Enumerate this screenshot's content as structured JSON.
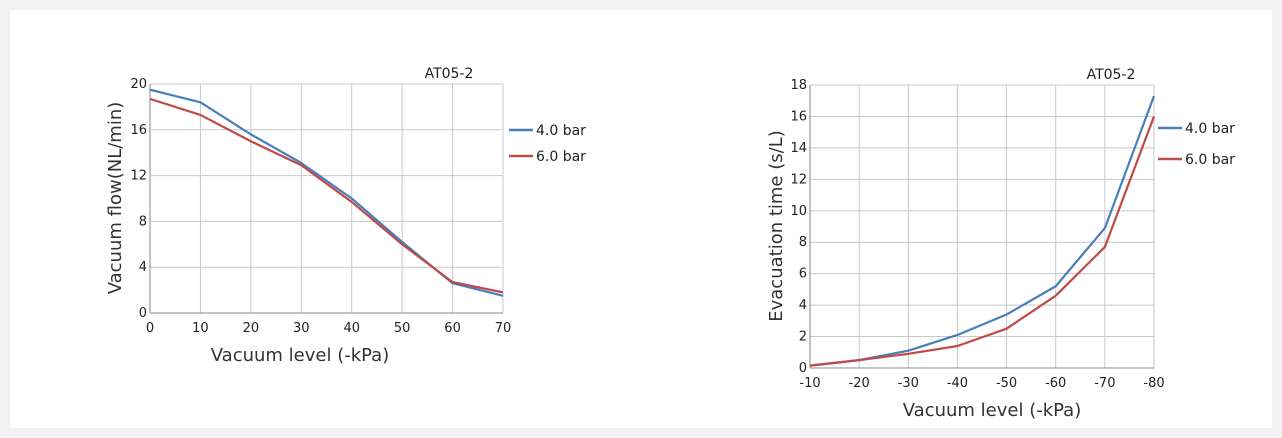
{
  "chart_data": [
    {
      "type": "line",
      "title": "AT05-2",
      "xlabel": "Vacuum level (-kPa)",
      "ylabel": "Vacuum flow(NL/min)",
      "x": [
        0,
        10,
        20,
        30,
        40,
        50,
        60,
        70
      ],
      "x_tick_labels": [
        "0",
        "10",
        "20",
        "30",
        "40",
        "50",
        "60",
        "70"
      ],
      "xlim": [
        0,
        70
      ],
      "ylim": [
        0,
        20
      ],
      "y_ticks": [
        0,
        4,
        8,
        12,
        16,
        20
      ],
      "grid": true,
      "legend": "right",
      "series": [
        {
          "name": "4.0 bar",
          "color": "#4a7ebb",
          "values": [
            19.5,
            18.4,
            15.6,
            13.1,
            10.0,
            6.2,
            2.6,
            1.5
          ]
        },
        {
          "name": "6.0 bar",
          "color": "#be4b48",
          "values": [
            18.7,
            17.3,
            15.0,
            12.9,
            9.7,
            6.0,
            2.7,
            1.8
          ]
        }
      ]
    },
    {
      "type": "line",
      "title": "AT05-2",
      "xlabel": "Vacuum level (-kPa)",
      "ylabel": "Evacuation time (s/L)",
      "x": [
        -10,
        -20,
        -30,
        -40,
        -50,
        -60,
        -70,
        -80
      ],
      "x_tick_labels": [
        "-10",
        "-20",
        "-30",
        "-40",
        "-50",
        "-60",
        "-70",
        "-80"
      ],
      "xlim": [
        -10,
        -80
      ],
      "ylim": [
        0,
        18
      ],
      "y_ticks": [
        0,
        2,
        4,
        6,
        8,
        10,
        12,
        14,
        16,
        18
      ],
      "grid": true,
      "legend": "right",
      "series": [
        {
          "name": "4.0 bar",
          "color": "#4a7ebb",
          "values": [
            0.15,
            0.5,
            1.1,
            2.1,
            3.4,
            5.2,
            8.9,
            17.3
          ]
        },
        {
          "name": "6.0 bar",
          "color": "#be4b48",
          "values": [
            0.15,
            0.5,
            0.9,
            1.4,
            2.5,
            4.6,
            7.7,
            16.0
          ]
        }
      ]
    }
  ]
}
